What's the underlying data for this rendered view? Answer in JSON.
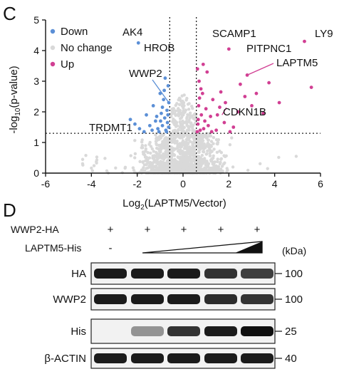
{
  "panel_c": {
    "letter": "C",
    "chart_data": {
      "type": "scatter",
      "xlabel_base": "Log",
      "xlabel_sub": "2",
      "xlabel_rest": "(LAPTM5/Vector)",
      "ylabel_pre": "-log",
      "ylabel_sub": "10",
      "ylabel_rest": "(p-value)",
      "xlim": [
        -6,
        6
      ],
      "ylim": [
        0,
        5
      ],
      "x_ticks": [
        "-6",
        "-4",
        "-2",
        "0",
        "2",
        "4",
        "6"
      ],
      "y_ticks": [
        "0",
        "1",
        "2",
        "3",
        "4",
        "5"
      ],
      "x_threshold": [
        -0.58,
        0.58
      ],
      "y_threshold": 1.3,
      "legend": [
        {
          "label": "Down",
          "color": "#5b8fd6"
        },
        {
          "label": "No change",
          "color": "#d9d9d9"
        },
        {
          "label": "Up",
          "color": "#d13f93"
        }
      ],
      "series": [
        {
          "name": "Down",
          "color": "#5b8fd6",
          "points": [
            [
              -1.95,
              4.25
            ],
            [
              -2.3,
              1.75
            ],
            [
              -2.1,
              1.6
            ],
            [
              -1.9,
              1.45
            ],
            [
              -1.6,
              1.9
            ],
            [
              -1.45,
              1.55
            ],
            [
              -1.3,
              2.2
            ],
            [
              -1.2,
              1.7
            ],
            [
              -1.1,
              1.45
            ],
            [
              -1.0,
              2.6
            ],
            [
              -0.95,
              1.95
            ],
            [
              -0.9,
              1.55
            ],
            [
              -0.85,
              2.4
            ],
            [
              -0.8,
              1.8
            ],
            [
              -0.75,
              1.4
            ],
            [
              -0.7,
              2.05
            ],
            [
              -0.68,
              1.65
            ],
            [
              -0.65,
              2.85
            ],
            [
              -0.63,
              1.5
            ],
            [
              -0.62,
              2.3
            ],
            [
              -1.05,
              1.35
            ],
            [
              -1.35,
              1.4
            ],
            [
              -0.78,
              3.1
            ],
            [
              -0.9,
              2.15
            ],
            [
              -1.15,
              1.85
            ],
            [
              -0.72,
              1.35
            ],
            [
              -0.66,
              1.9
            ],
            [
              -1.7,
              1.35
            ],
            [
              -0.82,
              2.7
            ],
            [
              -0.98,
              1.7
            ]
          ]
        },
        {
          "name": "Up",
          "color": "#d13f93",
          "points": [
            [
              2.0,
              4.05
            ],
            [
              5.3,
              4.3
            ],
            [
              5.6,
              2.8
            ],
            [
              3.75,
              2.95
            ],
            [
              2.8,
              3.2
            ],
            [
              3.2,
              2.6
            ],
            [
              4.2,
              2.3
            ],
            [
              2.5,
              2.9
            ],
            [
              2.7,
              2.5
            ],
            [
              1.85,
              2.3
            ],
            [
              1.6,
              2.15
            ],
            [
              1.5,
              1.9
            ],
            [
              1.3,
              2.4
            ],
            [
              1.2,
              1.85
            ],
            [
              1.1,
              1.55
            ],
            [
              1.0,
              2.1
            ],
            [
              0.95,
              1.7
            ],
            [
              0.9,
              1.45
            ],
            [
              0.85,
              2.6
            ],
            [
              0.8,
              1.9
            ],
            [
              0.75,
              1.4
            ],
            [
              0.7,
              3.0
            ],
            [
              0.68,
              2.2
            ],
            [
              0.65,
              1.6
            ],
            [
              0.63,
              3.4
            ],
            [
              0.62,
              1.35
            ],
            [
              1.45,
              1.4
            ],
            [
              2.2,
              1.5
            ],
            [
              1.8,
              1.65
            ],
            [
              2.4,
              2.0
            ],
            [
              3.0,
              2.2
            ],
            [
              1.05,
              3.3
            ],
            [
              0.78,
              2.75
            ],
            [
              1.25,
              1.35
            ],
            [
              0.88,
              3.55
            ],
            [
              0.72,
              2.45
            ],
            [
              2.05,
              1.35
            ],
            [
              1.65,
              2.65
            ],
            [
              3.5,
              1.95
            ],
            [
              0.66,
              1.75
            ]
          ]
        }
      ],
      "annotations": [
        {
          "text": "AK4",
          "x": -1.95,
          "y": 4.25
        },
        {
          "text": "HROB",
          "x": -1.4,
          "y": 3.55
        },
        {
          "text": "WWP2",
          "x": -0.62,
          "y": 2.3
        },
        {
          "text": "TRDMT1",
          "x": -0.68,
          "y": 1.35
        },
        {
          "text": "SCAMP1",
          "x": 2.0,
          "y": 4.05
        },
        {
          "text": "LY9",
          "x": 5.3,
          "y": 4.3
        },
        {
          "text": "PITPNC1",
          "x": 3.1,
          "y": 3.75
        },
        {
          "text": "LAPTM5",
          "x": 2.8,
          "y": 3.2
        },
        {
          "text": "CDKN1B",
          "x": 1.7,
          "y": 1.9
        }
      ]
    }
  },
  "panel_d": {
    "letter": "D",
    "row_wwp2": "WWP2-HA",
    "row_laptm5": "LAPTM5-His",
    "wwp2_marks": [
      "+",
      "+",
      "+",
      "+",
      "+"
    ],
    "laptm5_mark_first": "-",
    "kda_label": "(kDa)",
    "blots": [
      {
        "label": "HA",
        "kda": "100",
        "intensity": [
          0.95,
          0.95,
          0.95,
          0.85,
          0.8
        ]
      },
      {
        "label": "WWP2",
        "kda": "100",
        "intensity": [
          0.95,
          0.95,
          0.95,
          0.88,
          0.85
        ]
      },
      {
        "label": "His",
        "kda": "25",
        "intensity": [
          0.0,
          0.45,
          0.85,
          0.95,
          1.0
        ]
      },
      {
        "label": "β-ACTIN",
        "kda": "40",
        "intensity": [
          0.95,
          0.95,
          0.95,
          0.95,
          0.95
        ]
      }
    ]
  }
}
